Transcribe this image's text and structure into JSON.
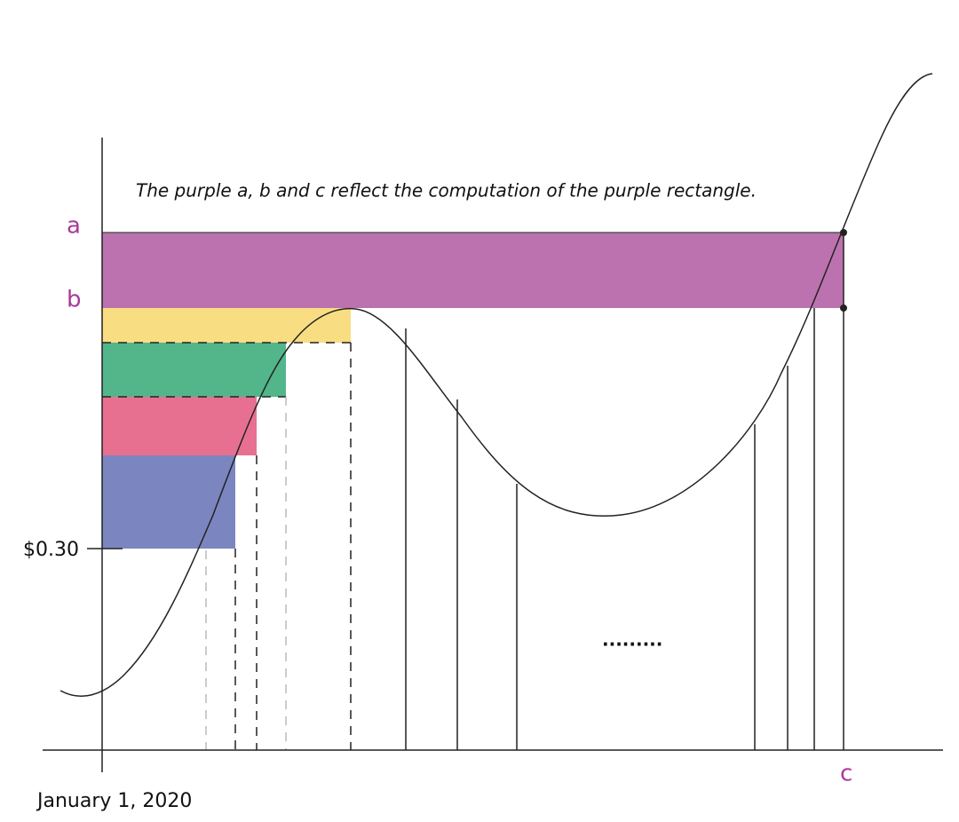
{
  "annotation": "The purple a, b and c reflect the computation of the purple rectangle.",
  "labels": {
    "a": "a",
    "b": "b",
    "c": "c"
  },
  "y_tick_label": "$0.30",
  "x_tick_label": "January 1, 2020",
  "ellipsis": "........."
}
